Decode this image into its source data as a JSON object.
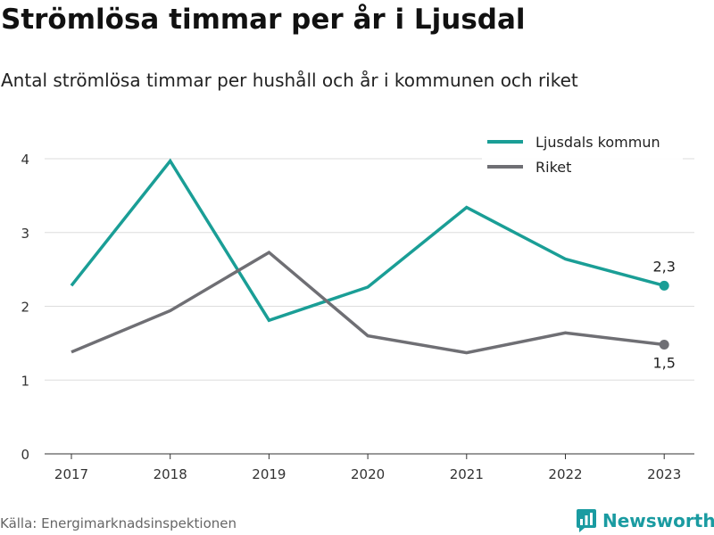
{
  "title": "Strömlösa timmar per år i Ljusdal",
  "subtitle": "Antal strömlösa timmar per hushåll och år i kommunen och riket",
  "source": "Källa: Energimarknadsinspektionen",
  "brand": "Newsworthy",
  "colors": {
    "kommun": "#1a9e96",
    "riket": "#6f6f74",
    "grid": "#dddddd",
    "axis": "#333333"
  },
  "chart_data": {
    "type": "line",
    "x": [
      "2017",
      "2018",
      "2019",
      "2020",
      "2021",
      "2022",
      "2023"
    ],
    "y_ticks": [
      0,
      1,
      2,
      3,
      4
    ],
    "ylim": [
      0,
      4.4
    ],
    "grid": true,
    "legend_position": "top-right",
    "series": [
      {
        "name": "Ljusdals kommun",
        "values": [
          2.28,
          3.97,
          1.81,
          2.26,
          3.34,
          2.64,
          2.28
        ],
        "end_label": "2,3"
      },
      {
        "name": "Riket",
        "values": [
          1.38,
          1.94,
          2.73,
          1.6,
          1.37,
          1.64,
          1.48
        ],
        "end_label": "1,5"
      }
    ]
  }
}
